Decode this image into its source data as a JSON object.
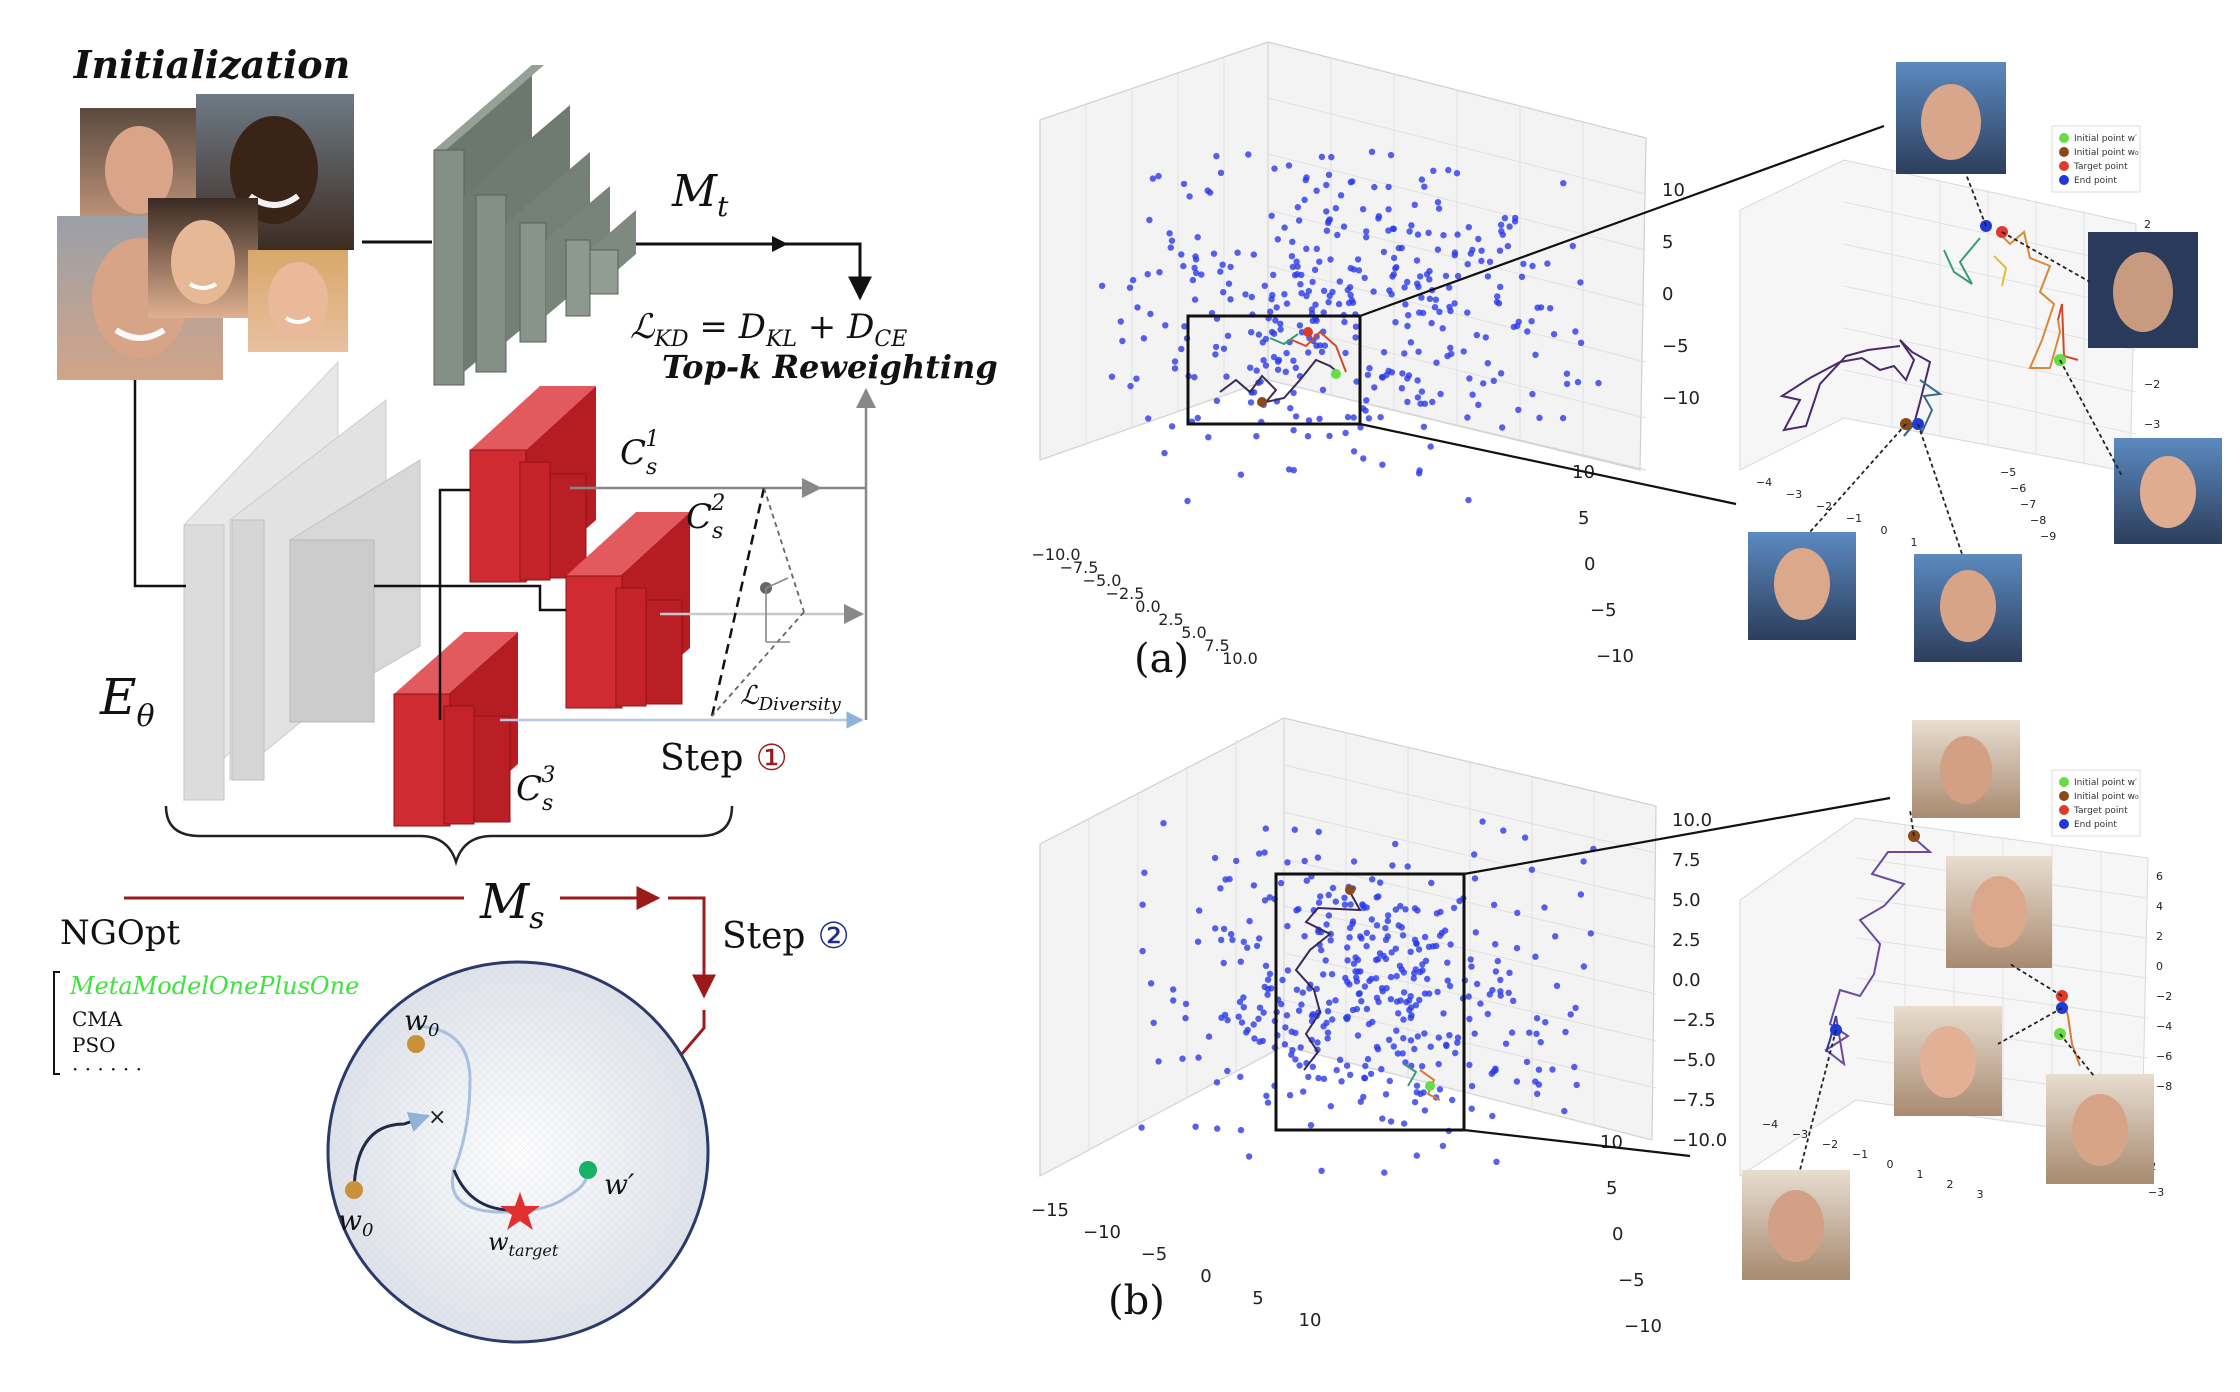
{
  "diagram": {
    "initialization_label": "Initialization",
    "teacher_label": "M",
    "teacher_sub": "t",
    "loss_line1": "ℒ",
    "loss_line1_sub": "KD",
    "loss_line1_rest": " = D",
    "loss_dkl_sub": "KL",
    "loss_plus": " + D",
    "loss_dce_sub": "CE",
    "loss_line2": "Top-k Reweighting",
    "encoder_label": "E",
    "encoder_sub": "θ",
    "classifier_1": {
      "base": "C",
      "sub": "s",
      "sup": "1"
    },
    "classifier_2": {
      "base": "C",
      "sub": "s",
      "sup": "2"
    },
    "classifier_3": {
      "base": "C",
      "sub": "s",
      "sup": "3"
    },
    "diversity_label": "ℒ",
    "diversity_sub": "Diversity",
    "step1_label": "Step",
    "step1_num": "①",
    "student_label": "M",
    "student_sub": "s",
    "step2_label": "Step",
    "step2_num": "②",
    "ngopt_label": "NGOpt",
    "optimizers": [
      "MetaModelOnePlusOne",
      "CMA",
      "PSO",
      "· · · · · ·"
    ],
    "w0_label": "w",
    "w0_sub": "0",
    "wprime_label": "w′",
    "wtarget_label": "w",
    "wtarget_sub": "target",
    "colors": {
      "student_block": "#c8252b",
      "teacher_block": "#7e8b80",
      "encoder_block": "#d8d8d8",
      "arrow_red": "#9b1b1b",
      "step1_color": "#9b1b1b",
      "step2_color": "#1f2d8a",
      "meta_green": "#3fe23f",
      "circle_border": "#2a3a6a"
    }
  },
  "panel_a": {
    "caption": "(a)",
    "legend": [
      "Initial point w′",
      "Initial point w₀",
      "Target point",
      "End point"
    ],
    "zticks": [
      "10",
      "5",
      "0",
      "−5",
      "−10"
    ],
    "xticks": [
      "−10.0",
      "−7.5",
      "−5.0",
      "−2.5",
      "0.0",
      "2.5",
      "5.0",
      "7.5",
      "10.0"
    ],
    "yticks": [
      "10",
      "5",
      "0",
      "−5",
      "−10"
    ],
    "zoom_zticks": [
      "2",
      "1",
      "0",
      "−1",
      "−2",
      "−3"
    ],
    "zoom_xticks": [
      "−4",
      "−3",
      "−2",
      "−1",
      "0",
      "1"
    ],
    "zoom_yticks": [
      "−5",
      "−6",
      "−7",
      "−8",
      "−9"
    ]
  },
  "panel_b": {
    "caption": "(b)",
    "legend": [
      "Initial point w′",
      "Initial point w₀",
      "Target point",
      "End point"
    ],
    "zticks": [
      "10.0",
      "7.5",
      "5.0",
      "2.5",
      "0.0",
      "−2.5",
      "−5.0",
      "−7.5",
      "−10.0"
    ],
    "xticks": [
      "−15",
      "−10",
      "−5",
      "0",
      "5",
      "10"
    ],
    "yticks": [
      "10",
      "5",
      "0",
      "−5",
      "−10"
    ],
    "zoom_zticks": [
      "6",
      "4",
      "2",
      "0",
      "−2",
      "−4",
      "−6",
      "−8"
    ],
    "zoom_xticks": [
      "−4",
      "−3",
      "−2",
      "−1",
      "0",
      "1",
      "2",
      "3"
    ],
    "zoom_yticks": [
      "0",
      "−1",
      "−2",
      "−3"
    ]
  },
  "legend_colors": [
    "#66dd44",
    "#8a4a1a",
    "#e03a2a",
    "#1f3ad8"
  ],
  "scatter_color": "#2a3bea"
}
